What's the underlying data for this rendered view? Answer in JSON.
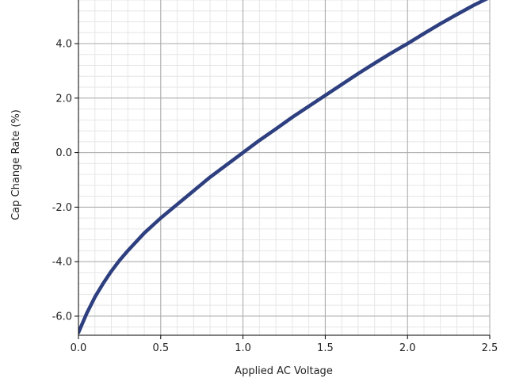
{
  "chart_data": {
    "type": "line",
    "title": "",
    "xlabel": "Applied AC Voltage",
    "ylabel": "Cap Change Rate (%)",
    "xlim": [
      0.0,
      2.5
    ],
    "ylim": [
      -6.7,
      5.6
    ],
    "x_ticks": [
      "0.0",
      "0.5",
      "1.0",
      "1.5",
      "2.0",
      "2.5"
    ],
    "y_ticks": [
      "-6.0",
      "-4.0",
      "-2.0",
      "0.0",
      "2.0",
      "4.0"
    ],
    "x_tick_values": [
      0.0,
      0.5,
      1.0,
      1.5,
      2.0,
      2.5
    ],
    "y_tick_values": [
      -6.0,
      -4.0,
      -2.0,
      0.0,
      2.0,
      4.0
    ],
    "x_minor_step": 0.1,
    "y_minor_step": 0.4,
    "grid": true,
    "legend": "none",
    "series": [
      {
        "color": "#2e3f80",
        "x": [
          0.0,
          0.05,
          0.1,
          0.15,
          0.2,
          0.25,
          0.3,
          0.4,
          0.5,
          0.6,
          0.7,
          0.8,
          0.9,
          1.0,
          1.1,
          1.2,
          1.3,
          1.4,
          1.5,
          1.6,
          1.7,
          1.8,
          1.9,
          2.0,
          2.1,
          2.2,
          2.3,
          2.4,
          2.5
        ],
        "y": [
          -6.6,
          -5.9,
          -5.3,
          -4.8,
          -4.35,
          -3.95,
          -3.6,
          -2.95,
          -2.4,
          -1.9,
          -1.4,
          -0.9,
          -0.45,
          0.0,
          0.45,
          0.87,
          1.3,
          1.7,
          2.1,
          2.5,
          2.9,
          3.28,
          3.65,
          4.0,
          4.37,
          4.73,
          5.07,
          5.4,
          5.7
        ]
      }
    ]
  }
}
